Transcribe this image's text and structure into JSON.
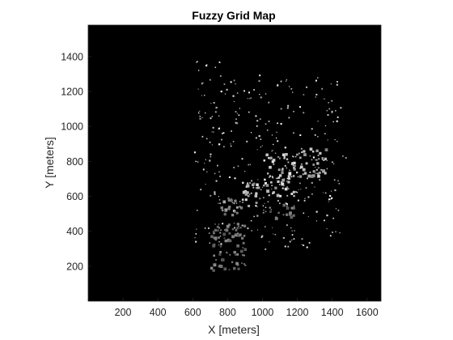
{
  "chart_data": {
    "type": "heatmap",
    "title": "Fuzzy Grid Map",
    "xlabel": "X [meters]",
    "ylabel": "Y [meters]",
    "xlim": [
      0,
      1680
    ],
    "ylim": [
      0,
      1580
    ],
    "x_ticks": [
      200,
      400,
      600,
      800,
      1000,
      1200,
      1400,
      1600
    ],
    "y_ticks": [
      200,
      400,
      600,
      800,
      1000,
      1200,
      1400
    ],
    "colormap": "gray",
    "background_color": "#000000",
    "occupied_regions": [
      {
        "x": [
          745,
          875
        ],
        "y": [
          490,
          600
        ],
        "level": 0.65
      },
      {
        "x": [
          870,
          1000
        ],
        "y": [
          550,
          700
        ],
        "level": 0.8
      },
      {
        "x": [
          1000,
          1180
        ],
        "y": [
          600,
          850
        ],
        "level": 0.85
      },
      {
        "x": [
          1180,
          1360
        ],
        "y": [
          720,
          880
        ],
        "level": 0.75
      },
      {
        "x": [
          1260,
          1480
        ],
        "y": [
          760,
          860
        ],
        "level": 0.95
      },
      {
        "x": [
          1040,
          1180
        ],
        "y": [
          480,
          560
        ],
        "level": 0.5
      },
      {
        "x": [
          600,
          1450
        ],
        "y": [
          300,
          1300
        ],
        "level": 0.9
      },
      {
        "x": [
          600,
          800
        ],
        "y": [
          1200,
          1400
        ],
        "level": 0.9
      },
      {
        "x": [
          700,
          900
        ],
        "y": [
          180,
          450
        ],
        "level": 0.5
      }
    ]
  }
}
